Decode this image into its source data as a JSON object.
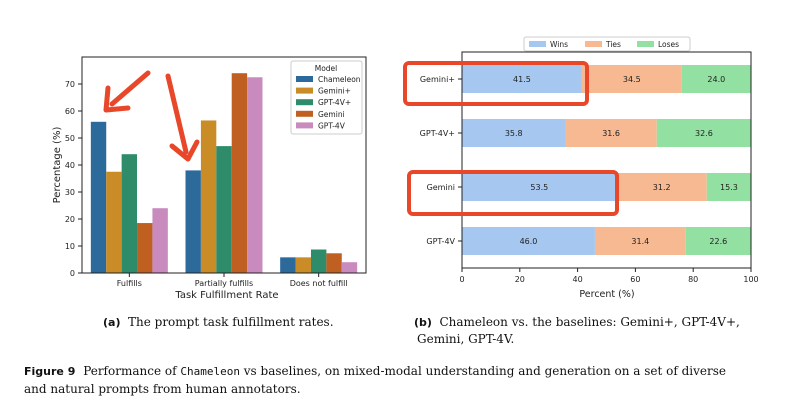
{
  "chart_data": [
    {
      "type": "bar",
      "title": "",
      "xlabel": "Task Fulfillment Rate",
      "ylabel": "Percentage (%)",
      "ylim": [
        0,
        80
      ],
      "yticks": [
        0,
        10,
        20,
        30,
        40,
        50,
        60,
        70
      ],
      "categories": [
        "Fulfills",
        "Partially fulfills",
        "Does not fulfill"
      ],
      "legend_title": "Model",
      "legend_position": "top-right",
      "series": [
        {
          "name": "Chameleon",
          "color": "#2b6a9b",
          "values": [
            56.0,
            38.0,
            5.8
          ]
        },
        {
          "name": "Gemini+",
          "color": "#c98c27",
          "values": [
            37.5,
            56.5,
            5.8
          ]
        },
        {
          "name": "GPT-4V+",
          "color": "#2f8c6b",
          "values": [
            44.0,
            47.0,
            8.7
          ]
        },
        {
          "name": "Gemini",
          "color": "#bf6022",
          "values": [
            18.5,
            74.0,
            7.3
          ]
        },
        {
          "name": "GPT-4V",
          "color": "#c98bbd",
          "values": [
            24.0,
            72.5,
            4.0
          ]
        }
      ],
      "annotations": [
        "red-arrow-fulfills",
        "red-arrow-partially-fulfills"
      ]
    },
    {
      "type": "bar",
      "orientation": "horizontal-stacked",
      "title": "",
      "xlabel": "Percent (%)",
      "ylabel": "",
      "xlim": [
        0,
        100
      ],
      "xticks": [
        0,
        20,
        40,
        60,
        80,
        100
      ],
      "categories": [
        "Gemini+",
        "GPT-4V+",
        "Gemini",
        "GPT-4V"
      ],
      "legend_position": "top-center",
      "highlighted_categories": [
        "Gemini+",
        "Gemini"
      ],
      "series": [
        {
          "name": "Wins",
          "color": "#a6c8f0",
          "values": [
            41.5,
            35.8,
            53.5,
            46.0
          ],
          "labels": [
            "41.5",
            "35.8",
            "53.5",
            "46.0"
          ]
        },
        {
          "name": "Ties",
          "color": "#f7b991",
          "values": [
            34.5,
            31.6,
            31.2,
            31.4
          ],
          "labels": [
            "34.5",
            "31.6",
            "31.2",
            "31.4"
          ]
        },
        {
          "name": "Loses",
          "color": "#93e0a3",
          "values": [
            24.0,
            32.6,
            15.3,
            22.6
          ],
          "labels": [
            "24.0",
            "32.6",
            "15.3",
            "22.6"
          ]
        }
      ]
    }
  ],
  "captions": {
    "a_label": "(a)",
    "a_text": "The prompt task fulfillment rates.",
    "b_label": "(b)",
    "b_text_line1": "Chameleon vs. the baselines: Gemini+, GPT-4V+,",
    "b_text_line2": "Gemini, GPT-4V.",
    "figure_label": "Figure 9",
    "figure_text_pre": "Performance of ",
    "figure_text_code": "Chameleon",
    "figure_text_line1_post": " vs baselines, on mixed-modal understanding and generation on a set of diverse",
    "figure_text_line2": "and natural prompts from human annotators."
  }
}
